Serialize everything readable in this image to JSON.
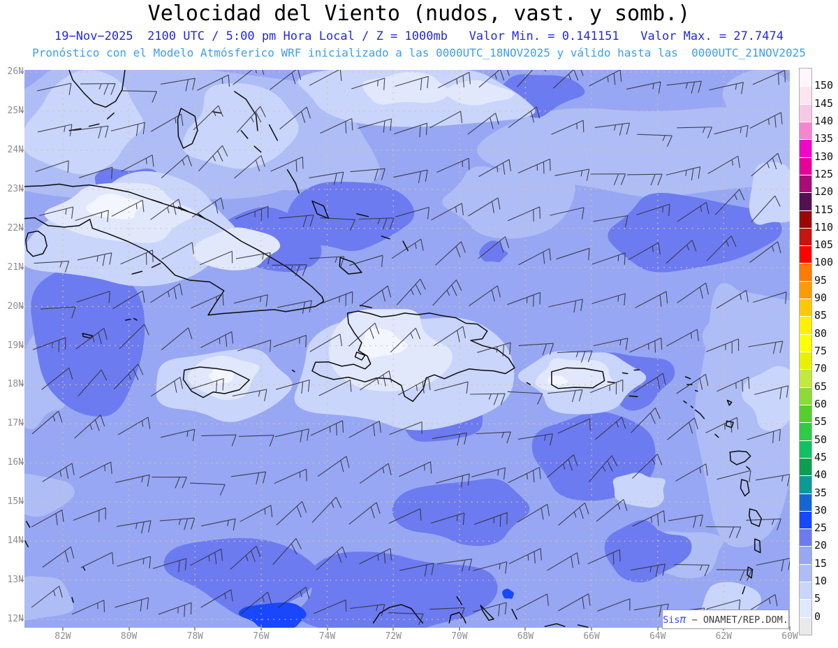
{
  "title": "Velocidad del Viento (nudos, vast. y somb.)",
  "subtitle_line1": "19−Nov−2025  2100 UTC / 5:00 pm Hora Local / Z = 1000mb   Valor Min. = 0.141151   Valor Max. = 27.7474",
  "subtitle_line2": "Pronóstico con el Modelo Atmósferico WRF inicializado a las 0000UTC_18NOV2025 y válido hasta las  0000UTC_21NOV2025",
  "map": {
    "lat_labels": [
      "26N",
      "25N",
      "24N",
      "23N",
      "22N",
      "21N",
      "20N",
      "19N",
      "18N",
      "17N",
      "16N",
      "15N",
      "14N",
      "13N",
      "12N"
    ],
    "lon_labels": [
      "82W",
      "80W",
      "78W",
      "76W",
      "74W",
      "72W",
      "70W",
      "68W",
      "66W",
      "64W",
      "62W",
      "60W"
    ]
  },
  "legend": {
    "values_top_to_bottom": [
      "150",
      "145",
      "140",
      "135",
      "130",
      "125",
      "120",
      "115",
      "110",
      "105",
      "100",
      "95",
      "90",
      "85",
      "80",
      "75",
      "70",
      "65",
      "60",
      "55",
      "50",
      "45",
      "40",
      "35",
      "30",
      "25",
      "20",
      "15",
      "10",
      "5",
      "0"
    ],
    "colors_top_to_bottom": [
      "#fef6fa",
      "#fce4f0",
      "#f9c8e6",
      "#f485d0",
      "#ef08c8",
      "#e6019c",
      "#aa0c77",
      "#551054",
      "#9d0605",
      "#c91311",
      "#fb0400",
      "#fd7a04",
      "#fe9a02",
      "#fec901",
      "#fdf001",
      "#feff02",
      "#e8f004",
      "#c2e93e",
      "#8bdc34",
      "#53d02b",
      "#2fca46",
      "#10c162",
      "#0c9e53",
      "#0c9a97",
      "#1566d5",
      "#1847fd",
      "#6d7bf0",
      "#97a7f3",
      "#aebdf5",
      "#c9d5fa",
      "#e1e8fc",
      "#e9e9e9"
    ]
  },
  "watermark": {
    "prefix": "Sis",
    "pi": "π",
    "suffix": " − ONAMET/REP.DOM."
  },
  "chart_data": {
    "type": "heatmap",
    "title": "Velocidad del Viento (nudos, vast. y somb.)",
    "units": "nudos",
    "level": "1000mb",
    "valid_time": "19-Nov-2025 2100 UTC / 5:00 pm Hora Local",
    "model": "WRF",
    "initialized": "0000UTC_18NOV2025",
    "valid_until": "0000UTC_21NOV2025",
    "value_min": 0.141151,
    "value_max": 27.7474,
    "lat_range": [
      "12N",
      "26N"
    ],
    "lon_range": [
      "82W",
      "60W"
    ],
    "colorbar_min": 0,
    "colorbar_max": 150,
    "colorbar_step": 5,
    "dominant_shading_range_knots": [
      5,
      30
    ],
    "colors": {
      "shade_0_5": "#e1e8fc",
      "shade_5_10": "#c9d5fa",
      "shade_10_15": "#aebdf5",
      "shade_15_20": "#97a7f3",
      "shade_20_25": "#6d7bf0",
      "shade_25_30": "#1847fd",
      "subtitle1_blue": "#2329e0",
      "subtitle2_blue": "#3a9ff0",
      "grid_tan": "#d8c49c",
      "axis_gray": "#8f8f8f"
    }
  }
}
